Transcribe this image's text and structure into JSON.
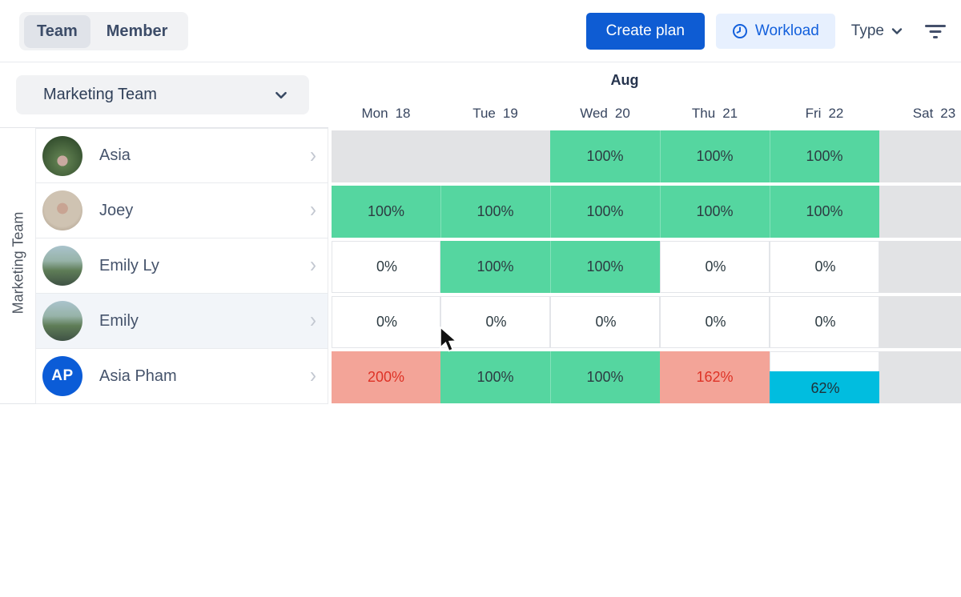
{
  "toolbar": {
    "tabs": [
      {
        "label": "Team",
        "active": true
      },
      {
        "label": "Member",
        "active": false
      }
    ],
    "create_plan_label": "Create plan",
    "workload_label": "Workload",
    "type_label": "Type",
    "icons": {
      "workload": "clock-icon",
      "type": "chevron-down-icon",
      "filter": "filter-icon"
    },
    "colors": {
      "primary_button": "#0e5cd3",
      "workload_bg": "#e7f0fe",
      "workload_text": "#1360dc"
    }
  },
  "team_selector": {
    "value": "Marketing Team"
  },
  "rail_label": "Marketing Team",
  "calendar": {
    "month": "Aug",
    "days": [
      {
        "dow": "Mon",
        "date": "18"
      },
      {
        "dow": "Tue",
        "date": "19"
      },
      {
        "dow": "Wed",
        "date": "20"
      },
      {
        "dow": "Thu",
        "date": "21"
      },
      {
        "dow": "Fri",
        "date": "22"
      },
      {
        "dow": "Sat",
        "date": "23"
      }
    ]
  },
  "members": [
    {
      "name": "Asia",
      "avatar": "photo-forest",
      "selected": false
    },
    {
      "name": "Joey",
      "avatar": "photo-portrait",
      "selected": false
    },
    {
      "name": "Emily Ly",
      "avatar": "photo-mountain",
      "selected": false
    },
    {
      "name": "Emily",
      "avatar": "photo-mountain",
      "selected": true
    },
    {
      "name": "Asia Pham",
      "avatar": "initials",
      "initials": "AP",
      "avatar_color": "#0b5cd7",
      "selected": false
    }
  ],
  "workload": {
    "legend_colors": {
      "ok": "#55d6a0",
      "over": "#f3a498",
      "partial": "#01bddf",
      "empty": "#e2e3e5"
    },
    "rows": [
      {
        "member": "Asia",
        "segments": [
          {
            "col": 0,
            "span": 2,
            "kind": "empty"
          },
          {
            "col": 2,
            "span": 3,
            "kind": "ok",
            "values": [
              "100%",
              "100%",
              "100%"
            ]
          },
          {
            "col": 5,
            "span": 1,
            "kind": "empty"
          }
        ]
      },
      {
        "member": "Joey",
        "segments": [
          {
            "col": 0,
            "span": 5,
            "kind": "ok",
            "values": [
              "100%",
              "100%",
              "100%",
              "100%",
              "100%"
            ]
          },
          {
            "col": 5,
            "span": 1,
            "kind": "empty"
          }
        ]
      },
      {
        "member": "Emily Ly",
        "segments": [
          {
            "col": 0,
            "span": 1,
            "kind": "zero",
            "values": [
              "0%"
            ]
          },
          {
            "col": 1,
            "span": 2,
            "kind": "ok",
            "values": [
              "100%",
              "100%"
            ]
          },
          {
            "col": 3,
            "span": 1,
            "kind": "zero",
            "values": [
              "0%"
            ]
          },
          {
            "col": 4,
            "span": 1,
            "kind": "zero",
            "values": [
              "0%"
            ]
          },
          {
            "col": 5,
            "span": 1,
            "kind": "empty"
          }
        ]
      },
      {
        "member": "Emily",
        "segments": [
          {
            "col": 0,
            "span": 1,
            "kind": "zero",
            "values": [
              "0%"
            ]
          },
          {
            "col": 1,
            "span": 1,
            "kind": "zero",
            "values": [
              "0%"
            ]
          },
          {
            "col": 2,
            "span": 1,
            "kind": "zero",
            "values": [
              "0%"
            ]
          },
          {
            "col": 3,
            "span": 1,
            "kind": "zero",
            "values": [
              "0%"
            ]
          },
          {
            "col": 4,
            "span": 1,
            "kind": "zero",
            "values": [
              "0%"
            ]
          },
          {
            "col": 5,
            "span": 1,
            "kind": "empty"
          }
        ]
      },
      {
        "member": "Asia Pham",
        "segments": [
          {
            "col": 0,
            "span": 1,
            "kind": "over",
            "values": [
              "200%"
            ]
          },
          {
            "col": 1,
            "span": 2,
            "kind": "ok",
            "values": [
              "100%",
              "100%"
            ]
          },
          {
            "col": 3,
            "span": 1,
            "kind": "over",
            "values": [
              "162%"
            ]
          },
          {
            "col": 4,
            "span": 1,
            "kind": "partial",
            "values": [
              "62%"
            ],
            "fill_percent": 62
          },
          {
            "col": 5,
            "span": 1,
            "kind": "empty"
          }
        ]
      }
    ]
  }
}
